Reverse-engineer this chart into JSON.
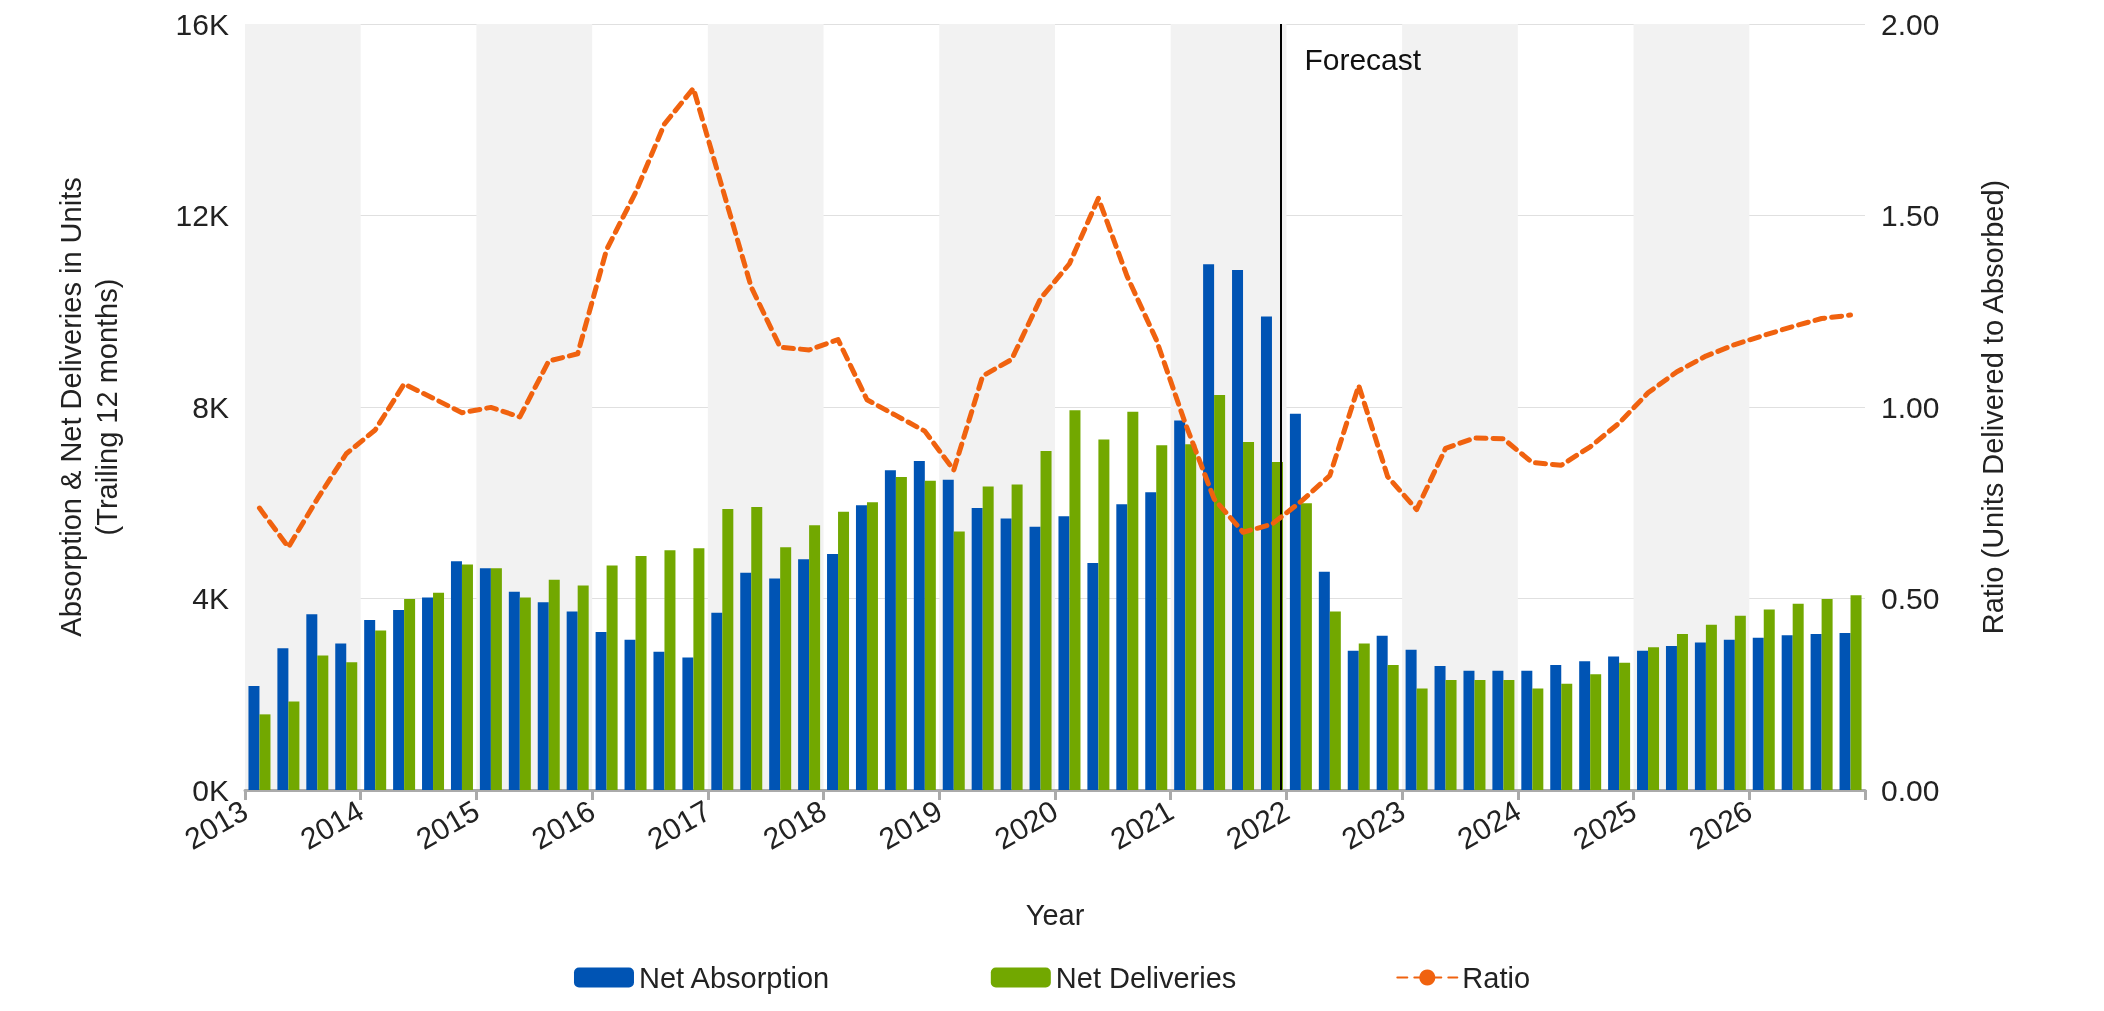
{
  "chart_data": {
    "type": "bar",
    "xlabel": "Year",
    "ylabel": "Absorption & Net Deliveries in Units\n(Trailing 12 months)",
    "y2label": "Ratio (Units Delivered to Absorbed)",
    "x": [
      2013.125,
      2013.375,
      2013.625,
      2013.875,
      2014.125,
      2014.375,
      2014.625,
      2014.875,
      2015.125,
      2015.375,
      2015.625,
      2015.875,
      2016.125,
      2016.375,
      2016.625,
      2016.875,
      2017.125,
      2017.375,
      2017.625,
      2017.875,
      2018.125,
      2018.375,
      2018.625,
      2018.875,
      2019.125,
      2019.375,
      2019.625,
      2019.875,
      2020.125,
      2020.375,
      2020.625,
      2020.875,
      2021.125,
      2021.375,
      2021.625,
      2021.875,
      2022.125,
      2022.375,
      2022.625,
      2022.875,
      2023.125,
      2023.375,
      2023.625,
      2023.875,
      2024.125,
      2024.375,
      2024.625,
      2024.875,
      2025.125,
      2025.375,
      2025.625,
      2025.875,
      2026.125,
      2026.375,
      2026.625,
      2026.875
    ],
    "series": [
      {
        "name": "Net Absorption",
        "color": "#0054b4",
        "values": [
          2170,
          2960,
          3670,
          3060,
          3550,
          3760,
          4020,
          4780,
          4630,
          4140,
          3920,
          3730,
          3300,
          3140,
          2890,
          2770,
          3700,
          4540,
          4420,
          4820,
          4930,
          5950,
          6680,
          6870,
          6480,
          5890,
          5670,
          5500,
          5720,
          4740,
          5970,
          6220,
          7720,
          10980,
          10860,
          9890,
          7860,
          4560,
          2910,
          3220,
          2930,
          2590,
          2490,
          2490,
          2490,
          2610,
          2690,
          2790,
          2910,
          3010,
          3080,
          3140,
          3180,
          3230,
          3260,
          3280
        ]
      },
      {
        "name": "Net Deliveries",
        "color": "#72a800",
        "values": [
          1580,
          1850,
          2810,
          2670,
          3330,
          3990,
          4120,
          4710,
          4630,
          4020,
          4390,
          4270,
          4690,
          4890,
          5010,
          5050,
          5870,
          5910,
          5070,
          5530,
          5810,
          6010,
          6540,
          6460,
          5400,
          6340,
          6380,
          7080,
          7930,
          7320,
          7900,
          7200,
          7220,
          8250,
          7270,
          6850,
          5990,
          3730,
          3060,
          2610,
          2120,
          2300,
          2300,
          2300,
          2120,
          2220,
          2420,
          2660,
          2980,
          3260,
          3450,
          3640,
          3770,
          3890,
          3990,
          4070
        ]
      },
      {
        "name": "Ratio",
        "type": "line",
        "axis": "y2",
        "color": "#f0620f",
        "line_style": "dashed",
        "values": [
          0.736,
          0.634,
          0.76,
          0.878,
          0.94,
          1.06,
          1.023,
          0.985,
          0.999,
          0.974,
          1.12,
          1.139,
          1.411,
          1.56,
          1.739,
          1.832,
          1.572,
          1.313,
          1.156,
          1.149,
          1.176,
          1.019,
          0.978,
          0.937,
          0.835,
          1.081,
          1.124,
          1.283,
          1.374,
          1.545,
          1.34,
          1.176,
          0.958,
          0.76,
          0.673,
          0.694,
          0.753,
          0.821,
          1.056,
          0.818,
          0.732,
          0.892,
          0.919,
          0.917,
          0.855,
          0.848,
          0.896,
          0.958,
          1.037,
          1.092,
          1.133,
          1.163,
          1.187,
          1.21,
          1.231,
          1.24
        ]
      }
    ],
    "xlim": [
      2013,
      2027
    ],
    "xticks": [
      2013,
      2014,
      2015,
      2016,
      2017,
      2018,
      2019,
      2020,
      2021,
      2022,
      2023,
      2024,
      2025,
      2026,
      {
        "value": 2027,
        "label": null
      }
    ],
    "ylim": [
      0,
      16000
    ],
    "yticks": [
      {
        "value": 0,
        "label": "0K"
      },
      {
        "value": 4000,
        "label": "4K"
      },
      {
        "value": 8000,
        "label": "8K"
      },
      {
        "value": 12000,
        "label": "12K"
      },
      {
        "value": 16000,
        "label": "16K"
      }
    ],
    "y2lim": [
      0,
      2
    ],
    "y2ticks": [
      {
        "value": 0,
        "label": "0.00"
      },
      {
        "value": 0.5,
        "label": "0.50"
      },
      {
        "value": 1,
        "label": "1.00"
      },
      {
        "value": 1.5,
        "label": "1.50"
      },
      {
        "value": 2,
        "label": "2.00"
      }
    ],
    "bands": [
      {
        "axis": "x",
        "from": 2013,
        "to": 2014,
        "color": "#f2f2f2"
      },
      {
        "axis": "x",
        "from": 2015,
        "to": 2016,
        "color": "#f2f2f2"
      },
      {
        "axis": "x",
        "from": 2017,
        "to": 2018,
        "color": "#f2f2f2"
      },
      {
        "axis": "x",
        "from": 2019,
        "to": 2020,
        "color": "#f2f2f2"
      },
      {
        "axis": "x",
        "from": 2021,
        "to": 2022,
        "color": "#f2f2f2"
      },
      {
        "axis": "x",
        "from": 2023,
        "to": 2024,
        "color": "#f2f2f2"
      },
      {
        "axis": "x",
        "from": 2025,
        "to": 2026,
        "color": "#f2f2f2"
      }
    ],
    "ref_lines": [
      {
        "axis": "x",
        "value": 2022,
        "label": "Forecast",
        "color": "#000000"
      }
    ],
    "grid": "y",
    "legend": "bottom",
    "marker": "none"
  }
}
